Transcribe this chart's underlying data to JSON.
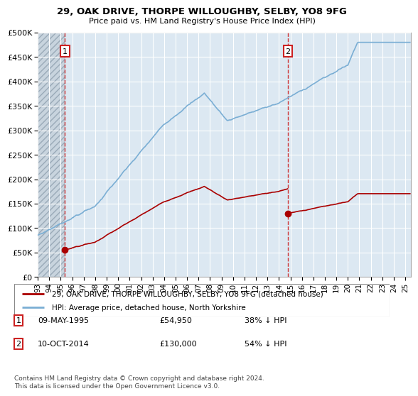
{
  "title": "29, OAK DRIVE, THORPE WILLOUGHBY, SELBY, YO8 9FG",
  "subtitle": "Price paid vs. HM Land Registry's House Price Index (HPI)",
  "legend_line1": "29, OAK DRIVE, THORPE WILLOUGHBY, SELBY, YO8 9FG (detached house)",
  "legend_line2": "HPI: Average price, detached house, North Yorkshire",
  "annotation1_date": "09-MAY-1995",
  "annotation1_price": "£54,950",
  "annotation1_hpi": "38% ↓ HPI",
  "annotation2_date": "10-OCT-2014",
  "annotation2_price": "£130,000",
  "annotation2_hpi": "54% ↓ HPI",
  "footer": "Contains HM Land Registry data © Crown copyright and database right 2024.\nThis data is licensed under the Open Government Licence v3.0.",
  "sale1_year": 1995.36,
  "sale1_price": 54950,
  "sale2_year": 2014.78,
  "sale2_price": 130000,
  "hpi_color": "#7aaed4",
  "price_color": "#aa0000",
  "vline_color": "#cc2222",
  "hatch_color": "#c0ccda",
  "background_plot": "#dce8f2",
  "ylim_min": 0,
  "ylim_max": 500000,
  "xlim_min": 1993,
  "xlim_max": 2025.5,
  "note1_box_color": "#cc2222",
  "note2_box_color": "#cc2222"
}
